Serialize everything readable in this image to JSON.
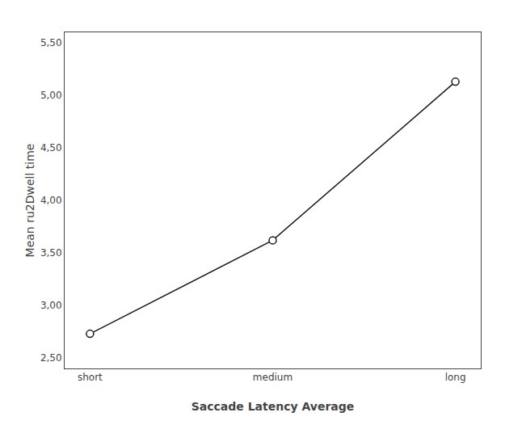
{
  "chart_data": {
    "type": "line",
    "xlabel": "Saccade Latency Average",
    "ylabel": "Mean ru2Dwell time",
    "categories": [
      "short",
      "medium",
      "long"
    ],
    "values": [
      2.73,
      3.62,
      5.13
    ],
    "color": "#1a1a1a",
    "marker": "circle",
    "ylim": [
      2.4,
      5.6
    ],
    "yticks": [
      {
        "value": 2.5,
        "label": "2,50"
      },
      {
        "value": 3.0,
        "label": "3,00"
      },
      {
        "value": 3.5,
        "label": "3,50"
      },
      {
        "value": 4.0,
        "label": "4,00"
      },
      {
        "value": 4.5,
        "label": "4,50"
      },
      {
        "value": 5.0,
        "label": "5,00"
      },
      {
        "value": 5.5,
        "label": "5,50"
      }
    ],
    "grid": false
  }
}
